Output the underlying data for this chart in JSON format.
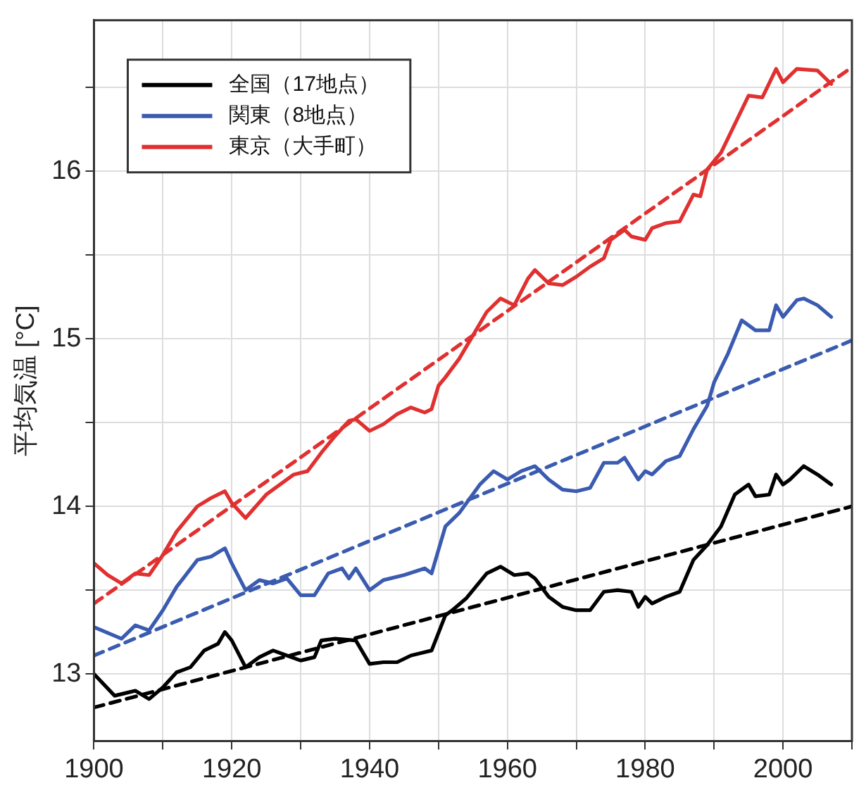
{
  "chart_data": {
    "type": "line",
    "ylabel": "平均気温 [°C]",
    "xlim": [
      1900,
      2010
    ],
    "ylim": [
      12.6,
      16.9
    ],
    "xticks": [
      1900,
      {
        "value": 1910,
        "label": null
      },
      1920,
      {
        "value": 1930,
        "label": null
      },
      1940,
      {
        "value": 1950,
        "label": null
      },
      1960,
      {
        "value": 1970,
        "label": null
      },
      1980,
      {
        "value": 1990,
        "label": null
      },
      2000,
      {
        "value": 2010,
        "label": null
      }
    ],
    "yticks": [
      13,
      {
        "value": 13.5,
        "label": null
      },
      14,
      {
        "value": 14.5,
        "label": null
      },
      15,
      {
        "value": 15.5,
        "label": null
      },
      16,
      {
        "value": 16.5,
        "label": null
      }
    ],
    "grid": true,
    "legend": "top left",
    "marker": "none",
    "line_style": "solid",
    "series": [
      {
        "name": "全国（17地点）",
        "color": "#000000",
        "x": [
          1900,
          1903,
          1905,
          1906,
          1908,
          1910,
          1912,
          1914,
          1916,
          1918,
          1919,
          1920,
          1922,
          1924,
          1926,
          1928,
          1930,
          1932,
          1933,
          1935,
          1938,
          1940,
          1942,
          1944,
          1946,
          1948,
          1949,
          1951,
          1952,
          1954,
          1957,
          1959,
          1961,
          1963,
          1964,
          1966,
          1968,
          1970,
          1972,
          1974,
          1976,
          1978,
          1979,
          1980,
          1981,
          1983,
          1985,
          1987,
          1989,
          1991,
          1993,
          1995,
          1996,
          1998,
          1999,
          2000,
          2001,
          2003,
          2005,
          2007
        ],
        "values": [
          13.0,
          12.87,
          12.89,
          12.9,
          12.85,
          12.92,
          13.01,
          13.04,
          13.14,
          13.18,
          13.25,
          13.2,
          13.04,
          13.1,
          13.14,
          13.11,
          13.08,
          13.1,
          13.2,
          13.21,
          13.2,
          13.06,
          13.07,
          13.07,
          13.11,
          13.13,
          13.14,
          13.35,
          13.38,
          13.45,
          13.6,
          13.64,
          13.59,
          13.6,
          13.57,
          13.46,
          13.4,
          13.38,
          13.38,
          13.49,
          13.5,
          13.49,
          13.4,
          13.46,
          13.42,
          13.46,
          13.49,
          13.68,
          13.77,
          13.88,
          14.07,
          14.13,
          14.06,
          14.07,
          14.19,
          14.13,
          14.16,
          14.24,
          14.19,
          14.13
        ]
      },
      {
        "name": "関東（8地点）",
        "color": "#3a5bb0",
        "x": [
          1900,
          1904,
          1906,
          1908,
          1910,
          1912,
          1915,
          1917,
          1919,
          1920,
          1922,
          1924,
          1926,
          1928,
          1930,
          1932,
          1934,
          1936,
          1937,
          1938,
          1940,
          1942,
          1945,
          1948,
          1949,
          1951,
          1953,
          1956,
          1958,
          1960,
          1962,
          1964,
          1966,
          1968,
          1970,
          1972,
          1974,
          1976,
          1977,
          1979,
          1980,
          1981,
          1983,
          1985,
          1987,
          1989,
          1990,
          1992,
          1994,
          1996,
          1998,
          1999,
          2000,
          2002,
          2003,
          2005,
          2007
        ],
        "values": [
          13.28,
          13.21,
          13.29,
          13.26,
          13.38,
          13.52,
          13.68,
          13.7,
          13.75,
          13.66,
          13.5,
          13.56,
          13.54,
          13.57,
          13.47,
          13.47,
          13.6,
          13.63,
          13.57,
          13.63,
          13.5,
          13.56,
          13.59,
          13.63,
          13.6,
          13.88,
          13.96,
          14.13,
          14.21,
          14.16,
          14.21,
          14.24,
          14.16,
          14.1,
          14.09,
          14.11,
          14.26,
          14.26,
          14.29,
          14.16,
          14.21,
          14.19,
          14.27,
          14.3,
          14.46,
          14.6,
          14.74,
          14.91,
          15.11,
          15.05,
          15.05,
          15.2,
          15.13,
          15.23,
          15.24,
          15.2,
          15.13
        ]
      },
      {
        "name": "東京（大手町）",
        "color": "#e03030",
        "x": [
          1900,
          1902,
          1904,
          1906,
          1908,
          1910,
          1912,
          1915,
          1917,
          1919,
          1920,
          1922,
          1925,
          1927,
          1929,
          1931,
          1933,
          1935,
          1937,
          1938,
          1940,
          1942,
          1944,
          1946,
          1948,
          1949,
          1950,
          1951,
          1953,
          1955,
          1957,
          1959,
          1961,
          1963,
          1964,
          1966,
          1968,
          1970,
          1972,
          1974,
          1975,
          1977,
          1978,
          1980,
          1981,
          1983,
          1985,
          1987,
          1988,
          1989,
          1991,
          1993,
          1995,
          1997,
          1999,
          2000,
          2002,
          2005,
          2007
        ],
        "values": [
          13.66,
          13.59,
          13.54,
          13.6,
          13.59,
          13.71,
          13.85,
          14.0,
          14.05,
          14.09,
          14.02,
          13.93,
          14.07,
          14.13,
          14.19,
          14.21,
          14.32,
          14.42,
          14.51,
          14.52,
          14.45,
          14.49,
          14.55,
          14.59,
          14.56,
          14.58,
          14.72,
          14.77,
          14.88,
          15.02,
          15.16,
          15.24,
          15.2,
          15.36,
          15.41,
          15.33,
          15.32,
          15.37,
          15.43,
          15.48,
          15.59,
          15.65,
          15.61,
          15.59,
          15.66,
          15.69,
          15.7,
          15.86,
          15.85,
          16.01,
          16.11,
          16.28,
          16.45,
          16.44,
          16.61,
          16.53,
          16.61,
          16.6,
          16.52
        ]
      },
      {
        "type": "line",
        "line_style": "dashed",
        "color": "#000000",
        "x": [
          1900,
          2010
        ],
        "values": [
          12.8,
          14.0
        ]
      },
      {
        "type": "line",
        "line_style": "dashed",
        "color": "#3a5bb0",
        "x": [
          1900,
          2010
        ],
        "values": [
          13.11,
          14.99
        ]
      },
      {
        "type": "line",
        "line_style": "dashed",
        "color": "#e03030",
        "x": [
          1900,
          2010
        ],
        "values": [
          13.42,
          16.62
        ]
      }
    ]
  }
}
